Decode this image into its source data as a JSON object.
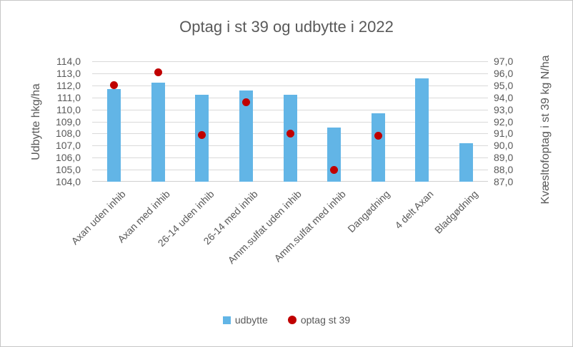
{
  "chart_data": {
    "type": "bar",
    "title": "Optag i st 39 og udbytte i 2022",
    "categories": [
      "Axan uden inhib",
      "Axan med inhib",
      "26-14 uden inhib",
      "26-14 med inhib",
      "Amm.sulfat uden inhib",
      "Amm.sulfat med inhib",
      "Dangødning",
      "4 delt Axan",
      "Bladgødning"
    ],
    "series": [
      {
        "name": "udbytte",
        "type": "bar",
        "axis": "left",
        "color": "#62b5e6",
        "values": [
          111.7,
          112.2,
          111.2,
          111.6,
          111.2,
          108.5,
          109.7,
          112.6,
          107.2
        ]
      },
      {
        "name": "optag st 39",
        "type": "scatter",
        "axis": "right",
        "color": "#c00000",
        "values": [
          95.0,
          96.1,
          90.9,
          93.6,
          91.0,
          88.0,
          90.8,
          null,
          null
        ]
      }
    ],
    "left_axis": {
      "label": "Udbytte hkg/ha",
      "min": 104,
      "max": 114,
      "step": 1,
      "tick_labels": [
        "114,0",
        "113,0",
        "112,0",
        "111,0",
        "110,0",
        "109,0",
        "108,0",
        "107,0",
        "106,0",
        "105,0",
        "104,0"
      ]
    },
    "right_axis": {
      "label": "Kvæsltofoptag i st 39 kg N/ha",
      "min": 87,
      "max": 97,
      "step": 1,
      "tick_labels": [
        "97,0",
        "96,0",
        "95,0",
        "94,0",
        "93,0",
        "92,0",
        "91,0",
        "90,0",
        "89,0",
        "88,0",
        "87,0"
      ]
    },
    "legend": {
      "position": "bottom",
      "entries": [
        {
          "label": "udbytte",
          "swatch": "square",
          "color": "#62b5e6"
        },
        {
          "label": "optag st 39",
          "swatch": "circle",
          "color": "#c00000"
        }
      ]
    },
    "grid": true,
    "gridline_color": "#d9d9d9",
    "text_color": "#595959"
  }
}
